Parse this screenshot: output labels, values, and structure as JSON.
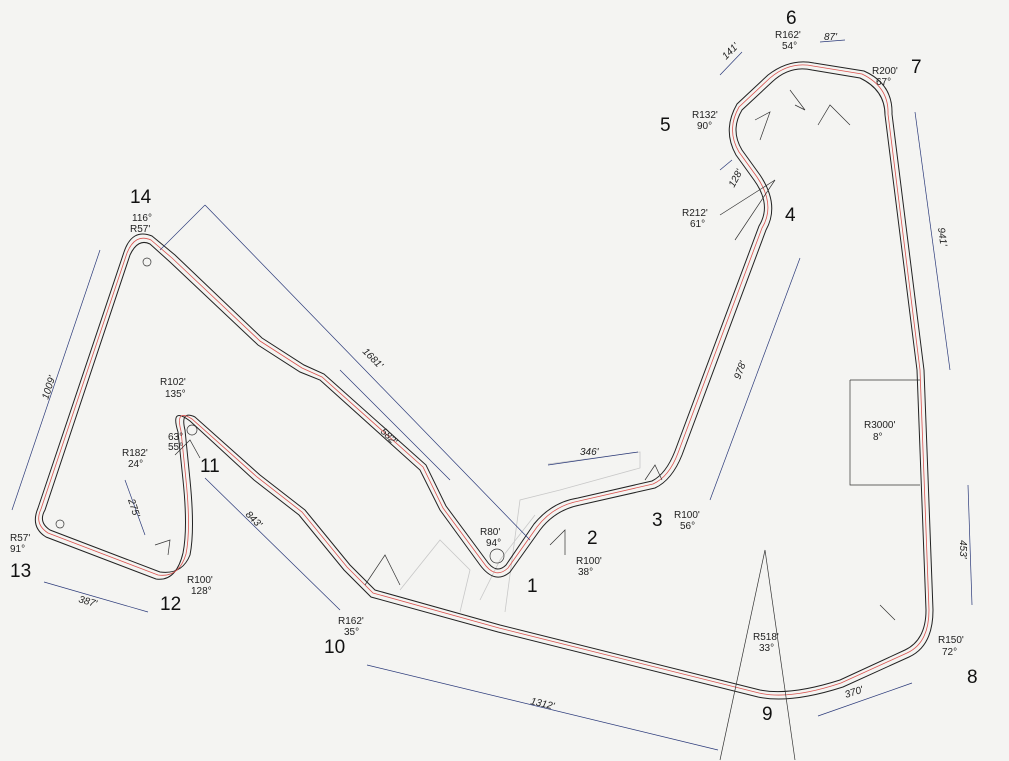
{
  "turns": [
    {
      "id": "1",
      "radius": "R80'",
      "angle": "94°"
    },
    {
      "id": "2",
      "radius": "R100'",
      "angle": "38°"
    },
    {
      "id": "3",
      "radius": "R100'",
      "angle": "56°"
    },
    {
      "id": "4",
      "radius": "R212'",
      "angle": "61°"
    },
    {
      "id": "5",
      "radius": "R132'",
      "angle": "90°"
    },
    {
      "id": "6",
      "radius": "R162'",
      "angle": "54°"
    },
    {
      "id": "7",
      "radius": "R200'",
      "angle": "67°"
    },
    {
      "id": "8",
      "radius": "R150'",
      "angle": "72°"
    },
    {
      "id": "9",
      "radius": "R518'",
      "angle": "33°"
    },
    {
      "id": "10",
      "radius": "R162'",
      "angle": "35°"
    },
    {
      "id": "11",
      "radius": "R182'",
      "angle": "24°"
    },
    {
      "id": "11b",
      "radius": "R102'",
      "angle": "135°"
    },
    {
      "id": "12",
      "radius": "R100'",
      "angle": "128°"
    },
    {
      "id": "13",
      "radius": "R57'",
      "angle": "91°"
    },
    {
      "id": "14",
      "radius": "R57'",
      "angle": "116°"
    }
  ],
  "straight_between_7_8": {
    "radius": "R3000'",
    "angle": "8°"
  },
  "small_angles": [
    "63°",
    "55°"
  ],
  "dimensions": [
    {
      "id": "d141",
      "label": "141'"
    },
    {
      "id": "d87",
      "label": "87'"
    },
    {
      "id": "d128",
      "label": "128'"
    },
    {
      "id": "d941",
      "label": "941'"
    },
    {
      "id": "d978",
      "label": "978'"
    },
    {
      "id": "d346",
      "label": "346'"
    },
    {
      "id": "d1681",
      "label": "1681'"
    },
    {
      "id": "d582",
      "label": "582'"
    },
    {
      "id": "d1009",
      "label": "1009'"
    },
    {
      "id": "d275",
      "label": "275'"
    },
    {
      "id": "d843",
      "label": "843'"
    },
    {
      "id": "d387",
      "label": "387'"
    },
    {
      "id": "d1312",
      "label": "1312'"
    },
    {
      "id": "d370",
      "label": "370'"
    },
    {
      "id": "d453",
      "label": "453'"
    }
  ]
}
